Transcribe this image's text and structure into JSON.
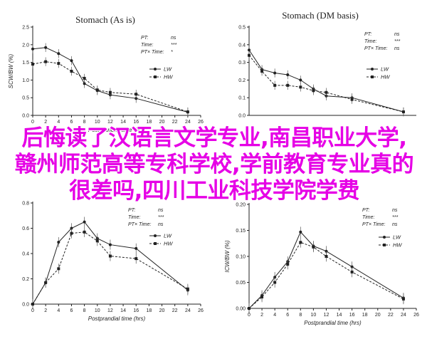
{
  "chart_data": [
    {
      "type": "line",
      "title": "Stomach (As is)",
      "xlabel": "Postprandial time (hrs)",
      "ylabel": "SCW/BW (%)",
      "x": [
        0,
        2,
        4,
        6,
        8,
        10,
        12,
        16,
        24
      ],
      "xlim": [
        0,
        26
      ],
      "ylim": [
        0,
        2.5
      ],
      "xticks": [
        "0",
        "2",
        "4",
        "6",
        "8",
        "10",
        "12",
        "14",
        "16",
        "18",
        "20",
        "22",
        "24",
        "26"
      ],
      "yticks": [
        "0.0",
        "0.5",
        "1.0",
        "1.5",
        "2.0",
        "2.5"
      ],
      "series": [
        {
          "name": "LW",
          "values": [
            1.88,
            1.92,
            1.75,
            1.55,
            0.9,
            0.7,
            0.58,
            0.48,
            0.09
          ]
        },
        {
          "name": "HW",
          "values": [
            1.45,
            1.52,
            1.47,
            1.25,
            1.05,
            0.72,
            0.65,
            0.6,
            0.1
          ]
        }
      ],
      "stats": [
        {
          "label": "PT:",
          "value": "ns"
        },
        {
          "label": "Time:",
          "value": "***"
        },
        {
          "label": "PT× Time:",
          "value": "*"
        }
      ]
    },
    {
      "type": "line",
      "title": "Stomach (DM basis)",
      "xlabel": "",
      "ylabel": "",
      "x": [
        0,
        2,
        4,
        6,
        8,
        10,
        12,
        16,
        24
      ],
      "xlim": [
        0,
        26
      ],
      "ylim": [
        0,
        0.5
      ],
      "xticks": [],
      "yticks": [
        "0.0",
        "0.1",
        "0.2",
        "0.3",
        "0.4",
        "0.5"
      ],
      "series": [
        {
          "name": "LW",
          "values": [
            0.37,
            0.26,
            0.24,
            0.23,
            0.2,
            0.15,
            0.11,
            0.1,
            0.02
          ]
        },
        {
          "name": "HW",
          "values": [
            0.34,
            0.25,
            0.17,
            0.17,
            0.16,
            0.14,
            0.13,
            0.09,
            0.02
          ]
        }
      ],
      "stats": [
        {
          "label": "PT:",
          "value": "ns"
        },
        {
          "label": "Time:",
          "value": "***"
        },
        {
          "label": "PT× Time:",
          "value": "ns"
        }
      ]
    },
    {
      "type": "line",
      "title": "",
      "xlabel": "Postprandial time (hrs)",
      "ylabel": "",
      "x": [
        0,
        2,
        4,
        6,
        8,
        10,
        12,
        16,
        24
      ],
      "xlim": [
        0,
        26
      ],
      "ylim": [
        0,
        0.8
      ],
      "xticks": [
        "0",
        "2",
        "4",
        "6",
        "8",
        "10",
        "12",
        "14",
        "16",
        "18",
        "20",
        "22",
        "24",
        "26"
      ],
      "yticks": [
        "0.0",
        "0.2",
        "0.4",
        "0.6",
        "0.8"
      ],
      "series": [
        {
          "name": "LW",
          "values": [
            0.0,
            0.17,
            0.49,
            0.6,
            0.65,
            0.52,
            0.47,
            0.44,
            0.11
          ]
        },
        {
          "name": "HW",
          "values": [
            0.0,
            0.17,
            0.28,
            0.56,
            0.57,
            0.5,
            0.38,
            0.36,
            0.12
          ]
        }
      ],
      "stats": [
        {
          "label": "PT:",
          "value": "ns"
        },
        {
          "label": "Time:",
          "value": "***"
        },
        {
          "label": "PT× Time:",
          "value": "ns"
        }
      ]
    },
    {
      "type": "line",
      "title": "",
      "xlabel": "Postprandial time (hrs)",
      "ylabel": "ICW/BW (%)",
      "x": [
        0,
        2,
        4,
        6,
        8,
        10,
        12,
        16,
        24
      ],
      "xlim": [
        0,
        26
      ],
      "ylim": [
        0,
        0.2
      ],
      "xticks": [
        "0",
        "2",
        "4",
        "6",
        "8",
        "10",
        "12",
        "14",
        "16",
        "18",
        "20",
        "22",
        "24",
        "26"
      ],
      "yticks": [
        "0.00",
        "0.05",
        "0.10",
        "0.15",
        "0.20"
      ],
      "series": [
        {
          "name": "LW",
          "values": [
            0.0,
            0.025,
            0.06,
            0.09,
            0.147,
            0.12,
            0.11,
            0.08,
            0.02
          ]
        },
        {
          "name": "HW",
          "values": [
            0.0,
            0.022,
            0.05,
            0.085,
            0.127,
            0.118,
            0.1,
            0.07,
            0.018
          ]
        }
      ],
      "stats": [
        {
          "label": "PT:",
          "value": "ns"
        },
        {
          "label": "Time:",
          "value": "***"
        },
        {
          "label": "PT× Time:",
          "value": "ns"
        }
      ]
    }
  ],
  "overlay_text": "后悔读了汉语言文学专业,南昌职业大学,赣州师范高等专科学校,学前教育专业真的很差吗,四川工业科技学院学费"
}
